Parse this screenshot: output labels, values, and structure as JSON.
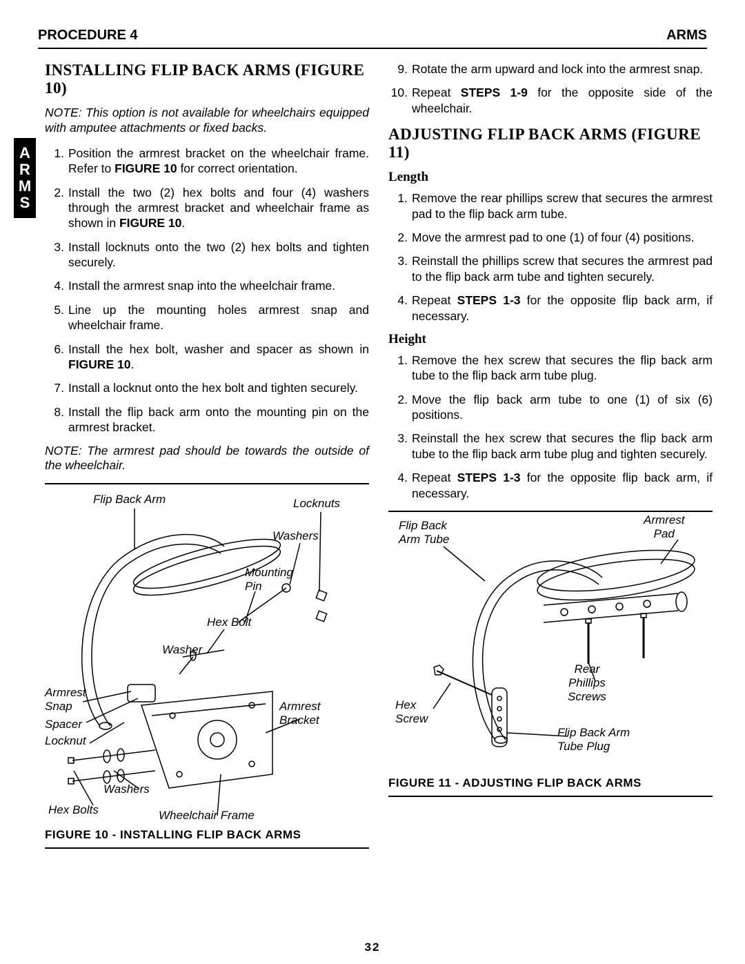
{
  "header": {
    "left": "PROCEDURE 4",
    "right": "ARMS"
  },
  "side_tab": "A\nR\nM\nS",
  "page_number": "32",
  "left_col": {
    "title": "INSTALLING FLIP BACK ARMS (FIGURE 10)",
    "note1": "NOTE: This option is not available for wheelchairs equipped with amputee attachments or fixed backs.",
    "steps": [
      "Position the armrest bracket on the wheelchair frame. Refer to <b>FIGURE 10</b> for correct orientation.",
      "Install the two (2) hex bolts and four (4) washers through the armrest bracket and wheelchair frame as shown in <b>FIGURE 10</b>.",
      "Install locknuts onto the two (2) hex bolts and tighten securely.",
      "Install the armrest snap into the wheelchair frame.",
      "Line up the mounting holes armrest snap and wheelchair frame.",
      "Install the hex bolt, washer and spacer as shown in <b>FIGURE 10</b>.",
      "Install a locknut onto the hex bolt and tighten securely.",
      "Install the flip back arm onto the mounting pin on the armrest bracket."
    ],
    "note2": "NOTE: The armrest pad should be towards the outside of the wheelchair."
  },
  "right_col": {
    "cont_steps": [
      "Rotate the arm upward and lock into the armrest snap.",
      "Repeat <b>STEPS 1-9</b> for the opposite side of the wheelchair."
    ],
    "title": "ADJUSTING FLIP BACK ARMS (FIGURE 11)",
    "length_title": "Length",
    "length_steps": [
      "Remove the rear phillips screw that secures the armrest pad to the flip back arm tube.",
      "Move the armrest pad to one (1) of four (4) positions.",
      "Reinstall the phillips screw that secures the armrest pad to the flip back arm tube and tighten securely.",
      "Repeat <b>STEPS 1-3</b> for the opposite flip back arm, if necessary."
    ],
    "height_title": "Height",
    "height_steps": [
      "Remove the hex screw that secures the flip back arm tube to the flip back arm tube plug.",
      "Move the flip back arm tube to one (1) of six (6) positions.",
      "Reinstall the hex screw  that secures the flip back arm tube to the flip back arm tube plug and tighten securely.",
      "Repeat <b>STEPS 1-3</b> for the opposite flip back arm, if necessary."
    ]
  },
  "figure10": {
    "caption": "FIGURE 10 - INSTALLING FLIP BACK ARMS",
    "labels": {
      "flip_back_arm": "Flip Back Arm",
      "locknuts": "Locknuts",
      "washers_top": "Washers",
      "mounting_pin": "Mounting\nPin",
      "hex_bolt": "Hex Bolt",
      "washer": "Washer",
      "armrest_snap": "Armrest\nSnap",
      "spacer": "Spacer",
      "locknut": "Locknut",
      "armrest_bracket": "Armrest\nBracket",
      "washers_bot": "Washers",
      "hex_bolts": "Hex Bolts",
      "wheelchair_frame": "Wheelchair Frame"
    }
  },
  "figure11": {
    "caption": "FIGURE 11 - ADJUSTING FLIP BACK ARMS",
    "labels": {
      "flip_back_arm_tube": "Flip Back\nArm Tube",
      "armrest_pad": "Armrest\nPad",
      "rear_phillips": "Rear\nPhillips\nScrews",
      "hex_screw": "Hex\nScrew",
      "tube_plug": "Flip Back Arm\nTube Plug"
    }
  }
}
